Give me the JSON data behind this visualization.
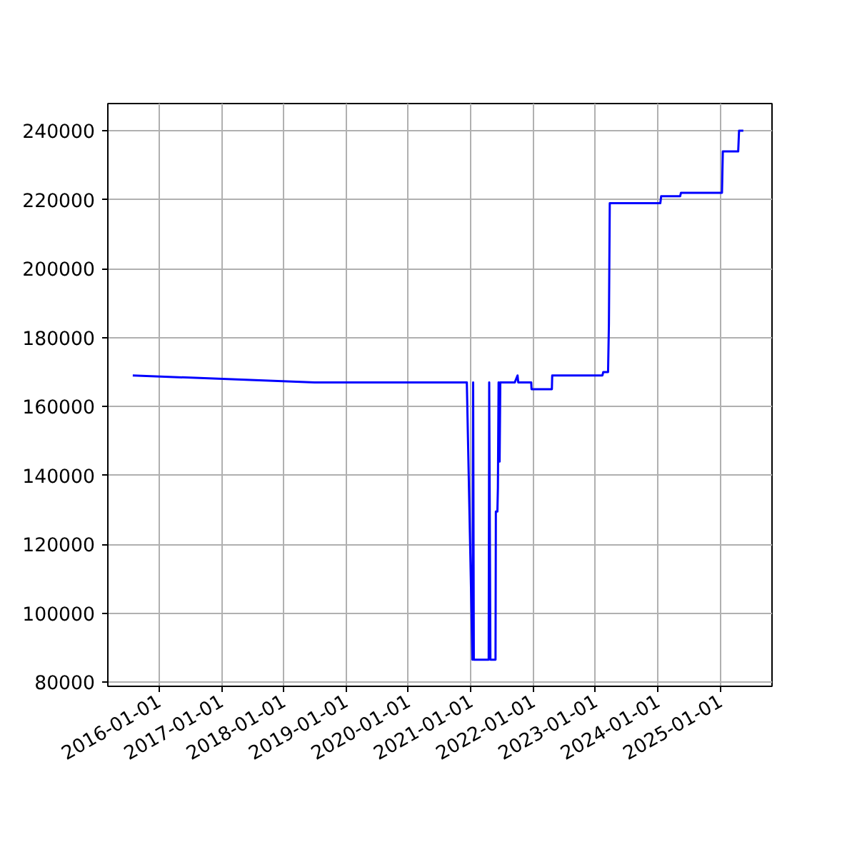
{
  "chart_data": {
    "type": "line",
    "x": [
      "2015-08-01",
      "2018-07-01",
      "2020-12-08",
      "2021-01-10",
      "2021-01-14",
      "2021-01-18",
      "2021-04-15",
      "2021-04-18",
      "2021-04-25",
      "2021-05-25",
      "2021-05-27",
      "2021-06-05",
      "2021-06-08",
      "2021-06-12",
      "2021-06-18",
      "2021-06-22",
      "2021-09-15",
      "2021-10-01",
      "2021-10-05",
      "2021-12-20",
      "2021-12-22",
      "2022-04-20",
      "2022-04-22",
      "2023-02-10",
      "2023-02-15",
      "2023-03-15",
      "2023-03-20",
      "2023-03-25",
      "2024-01-15",
      "2024-01-20",
      "2024-05-10",
      "2024-05-15",
      "2025-01-10",
      "2025-01-15",
      "2025-04-15",
      "2025-04-20",
      "2025-05-15"
    ],
    "series": [
      {
        "color": "#0000ff",
        "values": [
          169000,
          167000,
          167000,
          86500,
          167000,
          86500,
          86500,
          167000,
          86500,
          86500,
          129500,
          129500,
          136500,
          167000,
          144000,
          167000,
          167000,
          169000,
          167000,
          167000,
          165000,
          165000,
          169000,
          169000,
          170000,
          170000,
          184000,
          219000,
          219000,
          221000,
          221000,
          222000,
          222000,
          234000,
          234000,
          240000,
          240000
        ]
      }
    ],
    "xlim": [
      "2015-03-08",
      "2025-10-30"
    ],
    "ylim": [
      78800,
      247900
    ],
    "xticks": [
      "2016-01-01",
      "2017-01-01",
      "2018-01-01",
      "2019-01-01",
      "2020-01-01",
      "2021-01-01",
      "2022-01-01",
      "2023-01-01",
      "2024-01-01",
      "2025-01-01"
    ],
    "yticks": [
      80000,
      100000,
      120000,
      140000,
      160000,
      180000,
      200000,
      220000,
      240000
    ],
    "grid": true,
    "line_style": "solid"
  }
}
